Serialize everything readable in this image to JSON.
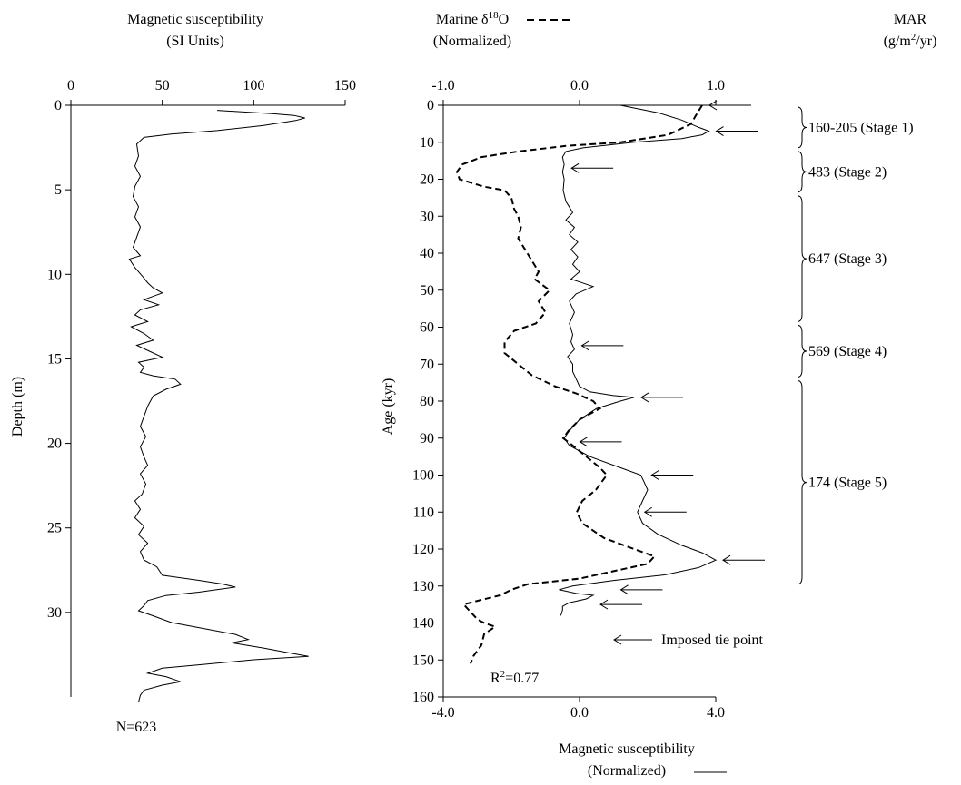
{
  "chart_data": [
    {
      "type": "line",
      "title_lines": [
        "Magnetic susceptibility",
        "(SI Units)"
      ],
      "ylabel": "Depth (m)",
      "x_ticks": [
        0,
        50,
        100,
        150
      ],
      "y_ticks": [
        0,
        5,
        10,
        15,
        20,
        25,
        30
      ],
      "xlim": [
        0,
        150
      ],
      "ylim": [
        0,
        35
      ],
      "y_inverted": true,
      "x_axis_position": "top",
      "note": "N=623",
      "series": [
        {
          "points": [
            [
              80,
              0.3
            ],
            [
              110,
              0.5
            ],
            [
              122,
              0.6
            ],
            [
              128,
              0.75
            ],
            [
              123,
              0.9
            ],
            [
              105,
              1.2
            ],
            [
              80,
              1.5
            ],
            [
              55,
              1.7
            ],
            [
              40,
              1.9
            ],
            [
              36,
              2.3
            ],
            [
              37,
              3.0
            ],
            [
              35,
              3.6
            ],
            [
              38,
              4.2
            ],
            [
              35,
              4.8
            ],
            [
              34,
              5.4
            ],
            [
              37,
              6.0
            ],
            [
              35,
              6.6
            ],
            [
              38,
              7.2
            ],
            [
              36,
              7.8
            ],
            [
              34,
              8.4
            ],
            [
              38,
              8.9
            ],
            [
              32,
              9.1
            ],
            [
              35,
              9.6
            ],
            [
              39,
              10.1
            ],
            [
              42,
              10.5
            ],
            [
              45,
              10.8
            ],
            [
              50,
              11.1
            ],
            [
              40,
              11.5
            ],
            [
              48,
              11.8
            ],
            [
              38,
              12.1
            ],
            [
              35,
              12.4
            ],
            [
              42,
              12.8
            ],
            [
              33,
              13.1
            ],
            [
              40,
              13.5
            ],
            [
              45,
              13.9
            ],
            [
              36,
              14.2
            ],
            [
              44,
              14.6
            ],
            [
              50,
              14.9
            ],
            [
              37,
              15.2
            ],
            [
              40,
              15.5
            ],
            [
              38,
              15.8
            ],
            [
              45,
              16.0
            ],
            [
              57,
              16.2
            ],
            [
              60,
              16.5
            ],
            [
              52,
              16.8
            ],
            [
              45,
              17.2
            ],
            [
              42,
              17.8
            ],
            [
              40,
              18.4
            ],
            [
              38,
              19.0
            ],
            [
              41,
              19.6
            ],
            [
              38,
              20.2
            ],
            [
              40,
              20.8
            ],
            [
              42,
              21.3
            ],
            [
              38,
              21.8
            ],
            [
              41,
              22.4
            ],
            [
              39,
              23.0
            ],
            [
              35,
              23.4
            ],
            [
              38,
              23.9
            ],
            [
              35,
              24.4
            ],
            [
              40,
              24.9
            ],
            [
              37,
              25.4
            ],
            [
              42,
              25.9
            ],
            [
              38,
              26.4
            ],
            [
              40,
              26.9
            ],
            [
              47,
              27.3
            ],
            [
              50,
              27.8
            ],
            [
              70,
              28.1
            ],
            [
              82,
              28.3
            ],
            [
              90,
              28.5
            ],
            [
              70,
              28.8
            ],
            [
              52,
              29.0
            ],
            [
              42,
              29.3
            ],
            [
              40,
              29.6
            ],
            [
              37,
              29.9
            ],
            [
              45,
              30.2
            ],
            [
              55,
              30.6
            ],
            [
              75,
              31.0
            ],
            [
              90,
              31.3
            ],
            [
              97,
              31.6
            ],
            [
              88,
              31.8
            ],
            [
              105,
              32.1
            ],
            [
              120,
              32.4
            ],
            [
              130,
              32.6
            ],
            [
              100,
              32.8
            ],
            [
              70,
              33.1
            ],
            [
              50,
              33.3
            ],
            [
              42,
              33.6
            ],
            [
              52,
              33.8
            ],
            [
              60,
              34.1
            ],
            [
              50,
              34.3
            ],
            [
              40,
              34.6
            ],
            [
              38,
              34.9
            ],
            [
              37,
              35.3
            ]
          ]
        }
      ]
    },
    {
      "type": "line",
      "ylabel": "Age (kyr)",
      "y_ticks": [
        0,
        10,
        20,
        30,
        40,
        50,
        60,
        70,
        80,
        90,
        100,
        110,
        120,
        130,
        140,
        150,
        160
      ],
      "ylim": [
        0,
        160
      ],
      "y_inverted": true,
      "top_axis": {
        "ticks": [
          "-1.0",
          "0.0",
          "1.0"
        ],
        "range": [
          -1,
          1
        ]
      },
      "bottom_axis": {
        "ticks": [
          "-4.0",
          "0.0",
          "4.0"
        ],
        "range": [
          -4,
          4
        ],
        "label_lines": [
          "Magnetic susceptibility",
          "(Normalized)"
        ]
      },
      "legend_entries": [
        {
          "label_lines": [
            "Marine δ18O",
            "(Normalized)"
          ],
          "style": "dashed",
          "axis": "top"
        },
        {
          "label_lines": [
            "Magnetic susceptibility",
            "(Normalized)"
          ],
          "style": "solid",
          "axis": "bottom"
        }
      ],
      "series": [
        {
          "name": "Marine δ18O (Normalized)",
          "style": "dashed",
          "axis": "top",
          "points": [
            [
              0.9,
              0
            ],
            [
              0.85,
              3
            ],
            [
              0.82,
              5
            ],
            [
              0.65,
              8
            ],
            [
              0.3,
              10
            ],
            [
              -0.1,
              11
            ],
            [
              -0.45,
              12.5
            ],
            [
              -0.72,
              14
            ],
            [
              -0.86,
              16
            ],
            [
              -0.9,
              18
            ],
            [
              -0.88,
              20
            ],
            [
              -0.7,
              22
            ],
            [
              -0.55,
              23
            ],
            [
              -0.5,
              25
            ],
            [
              -0.48,
              28
            ],
            [
              -0.45,
              30
            ],
            [
              -0.43,
              33
            ],
            [
              -0.45,
              36
            ],
            [
              -0.4,
              39
            ],
            [
              -0.35,
              42
            ],
            [
              -0.3,
              45
            ],
            [
              -0.33,
              47
            ],
            [
              -0.22,
              50
            ],
            [
              -0.3,
              53
            ],
            [
              -0.25,
              56
            ],
            [
              -0.32,
              59
            ],
            [
              -0.48,
              61
            ],
            [
              -0.55,
              64
            ],
            [
              -0.55,
              67
            ],
            [
              -0.45,
              70
            ],
            [
              -0.35,
              73
            ],
            [
              -0.18,
              76
            ],
            [
              -0.02,
              78
            ],
            [
              0.1,
              80
            ],
            [
              0.15,
              82
            ],
            [
              0.0,
              85
            ],
            [
              -0.08,
              88
            ],
            [
              -0.12,
              90
            ],
            [
              -0.05,
              92
            ],
            [
              0.05,
              95
            ],
            [
              0.15,
              98
            ],
            [
              0.2,
              100
            ],
            [
              0.12,
              104
            ],
            [
              0.02,
              107
            ],
            [
              -0.02,
              110
            ],
            [
              0.02,
              113
            ],
            [
              0.18,
              117
            ],
            [
              0.4,
              120
            ],
            [
              0.55,
              122
            ],
            [
              0.5,
              124
            ],
            [
              0.25,
              126
            ],
            [
              0.0,
              128
            ],
            [
              -0.38,
              129.5
            ],
            [
              -0.5,
              131
            ],
            [
              -0.58,
              132.5
            ],
            [
              -0.75,
              134
            ],
            [
              -0.85,
              135
            ],
            [
              -0.8,
              137
            ],
            [
              -0.75,
              139
            ],
            [
              -0.7,
              140
            ],
            [
              -0.62,
              141
            ],
            [
              -0.7,
              143
            ],
            [
              -0.72,
              146
            ],
            [
              -0.78,
              149
            ],
            [
              -0.8,
              151
            ]
          ]
        },
        {
          "name": "Magnetic susceptibility (Normalized)",
          "style": "solid",
          "axis": "bottom",
          "points": [
            [
              1.2,
              0
            ],
            [
              2.3,
              2
            ],
            [
              3.0,
              4
            ],
            [
              3.5,
              6
            ],
            [
              3.8,
              7
            ],
            [
              3.6,
              8
            ],
            [
              3.0,
              9
            ],
            [
              1.6,
              10
            ],
            [
              0.1,
              11.5
            ],
            [
              -0.4,
              12.5
            ],
            [
              -0.5,
              14
            ],
            [
              -0.45,
              16
            ],
            [
              -0.5,
              18
            ],
            [
              -0.45,
              20
            ],
            [
              -0.48,
              23
            ],
            [
              -0.4,
              26
            ],
            [
              -0.2,
              29
            ],
            [
              -0.4,
              31
            ],
            [
              -0.15,
              33
            ],
            [
              -0.3,
              35
            ],
            [
              -0.05,
              37
            ],
            [
              -0.25,
              39
            ],
            [
              -0.05,
              41
            ],
            [
              -0.2,
              43
            ],
            [
              0.0,
              45
            ],
            [
              -0.25,
              47
            ],
            [
              0.4,
              49
            ],
            [
              -0.1,
              51
            ],
            [
              -0.3,
              53
            ],
            [
              -0.15,
              56
            ],
            [
              -0.3,
              59
            ],
            [
              -0.2,
              62
            ],
            [
              -0.25,
              64
            ],
            [
              -0.15,
              66
            ],
            [
              -0.35,
              68
            ],
            [
              -0.2,
              70
            ],
            [
              -0.2,
              72
            ],
            [
              -0.1,
              74
            ],
            [
              0.0,
              76
            ],
            [
              0.3,
              77.5
            ],
            [
              1.0,
              78.5
            ],
            [
              1.6,
              79
            ],
            [
              1.2,
              80
            ],
            [
              0.5,
              82
            ],
            [
              0.0,
              85
            ],
            [
              -0.3,
              88
            ],
            [
              -0.45,
              90
            ],
            [
              -0.3,
              92
            ],
            [
              0.3,
              95
            ],
            [
              1.2,
              98
            ],
            [
              1.8,
              100
            ],
            [
              1.9,
              102
            ],
            [
              2.0,
              104
            ],
            [
              1.85,
              107
            ],
            [
              1.7,
              110
            ],
            [
              1.85,
              113
            ],
            [
              2.3,
              116
            ],
            [
              3.0,
              119
            ],
            [
              3.6,
              121
            ],
            [
              4.0,
              123
            ],
            [
              3.5,
              125
            ],
            [
              2.5,
              127
            ],
            [
              1.0,
              128.5
            ],
            [
              -0.2,
              130
            ],
            [
              -0.6,
              131
            ],
            [
              -0.1,
              132
            ],
            [
              0.4,
              132.5
            ],
            [
              0.2,
              133.5
            ],
            [
              -0.3,
              134.5
            ],
            [
              -0.5,
              135.5
            ],
            [
              -0.5,
              136.5
            ],
            [
              -0.55,
              138
            ]
          ]
        }
      ],
      "tie_point_ages": [
        0,
        7,
        17,
        65,
        79,
        91,
        100,
        110,
        123,
        131,
        135
      ],
      "tie_point_legend": "Imposed tie point",
      "annotation": "R2=0.77",
      "mar_title_lines": [
        "MAR",
        "(g/m2/yr)"
      ],
      "mar_stages": [
        {
          "label": "160-205 (Stage 1)",
          "from": 0,
          "to": 12
        },
        {
          "label": "483 (Stage 2)",
          "from": 12,
          "to": 24
        },
        {
          "label": "647 (Stage 3)",
          "from": 24,
          "to": 59
        },
        {
          "label": "569 (Stage 4)",
          "from": 59,
          "to": 74
        },
        {
          "label": "174 (Stage 5)",
          "from": 74,
          "to": 130
        }
      ]
    }
  ]
}
